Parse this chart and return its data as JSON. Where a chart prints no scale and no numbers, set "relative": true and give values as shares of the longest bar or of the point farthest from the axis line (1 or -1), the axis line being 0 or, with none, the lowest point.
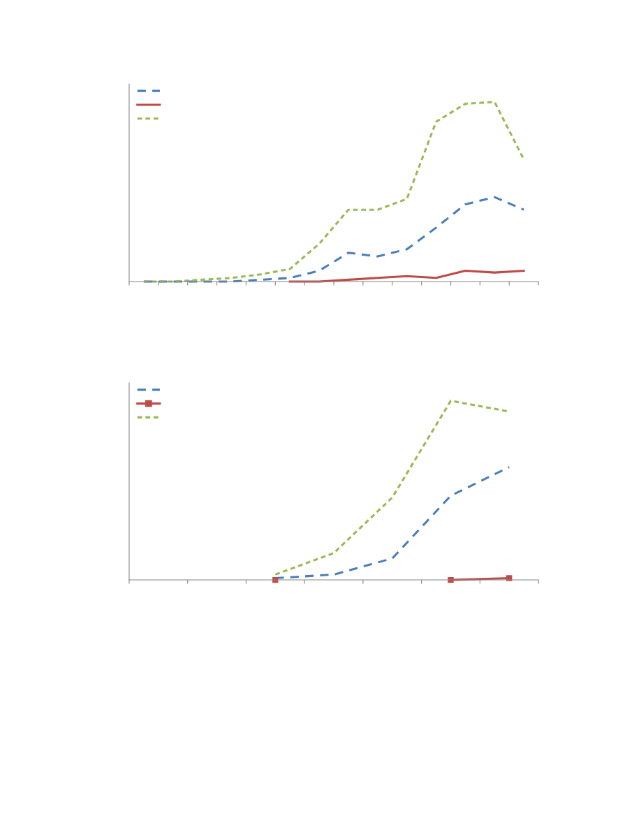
{
  "chart_data": [
    {
      "type": "line",
      "relative": true,
      "grid": false,
      "categories": [
        null,
        null,
        null,
        null,
        null,
        null,
        null,
        null,
        null,
        null,
        null,
        null,
        null,
        null
      ],
      "series": [
        {
          "color": "#4a7ebb",
          "line_style": "dashed",
          "values": [
            0,
            0,
            0,
            0,
            0.01,
            0.02,
            0.06,
            0.16,
            0.14,
            0.18,
            0.3,
            0.43,
            0.47,
            0.4
          ]
        },
        {
          "color": "#be4b48",
          "line_style": "solid",
          "values": [
            null,
            null,
            null,
            null,
            null,
            0,
            0,
            0.01,
            0.02,
            0.03,
            0.02,
            0.06,
            0.05,
            0.06
          ]
        },
        {
          "color": "#98b954",
          "line_style": "dotted",
          "values": [
            0,
            0,
            0.01,
            0.02,
            0.04,
            0.07,
            0.21,
            0.4,
            0.4,
            0.46,
            0.89,
            0.99,
            1,
            0.68
          ]
        }
      ]
    },
    {
      "type": "line",
      "relative": true,
      "grid": false,
      "categories": [
        null,
        null,
        null,
        null,
        null,
        null,
        null
      ],
      "series": [
        {
          "color": "#4a7ebb",
          "line_style": "dashed",
          "values": [
            null,
            null,
            0.01,
            0.03,
            0.12,
            0.47,
            0.63
          ]
        },
        {
          "color": "#be4b48",
          "line_style": "solid",
          "marker": "square",
          "values": [
            null,
            null,
            0,
            null,
            null,
            0,
            0.01
          ]
        },
        {
          "color": "#98b954",
          "line_style": "dotted",
          "values": [
            null,
            null,
            0.03,
            0.15,
            0.46,
            1,
            0.94
          ]
        }
      ]
    }
  ]
}
